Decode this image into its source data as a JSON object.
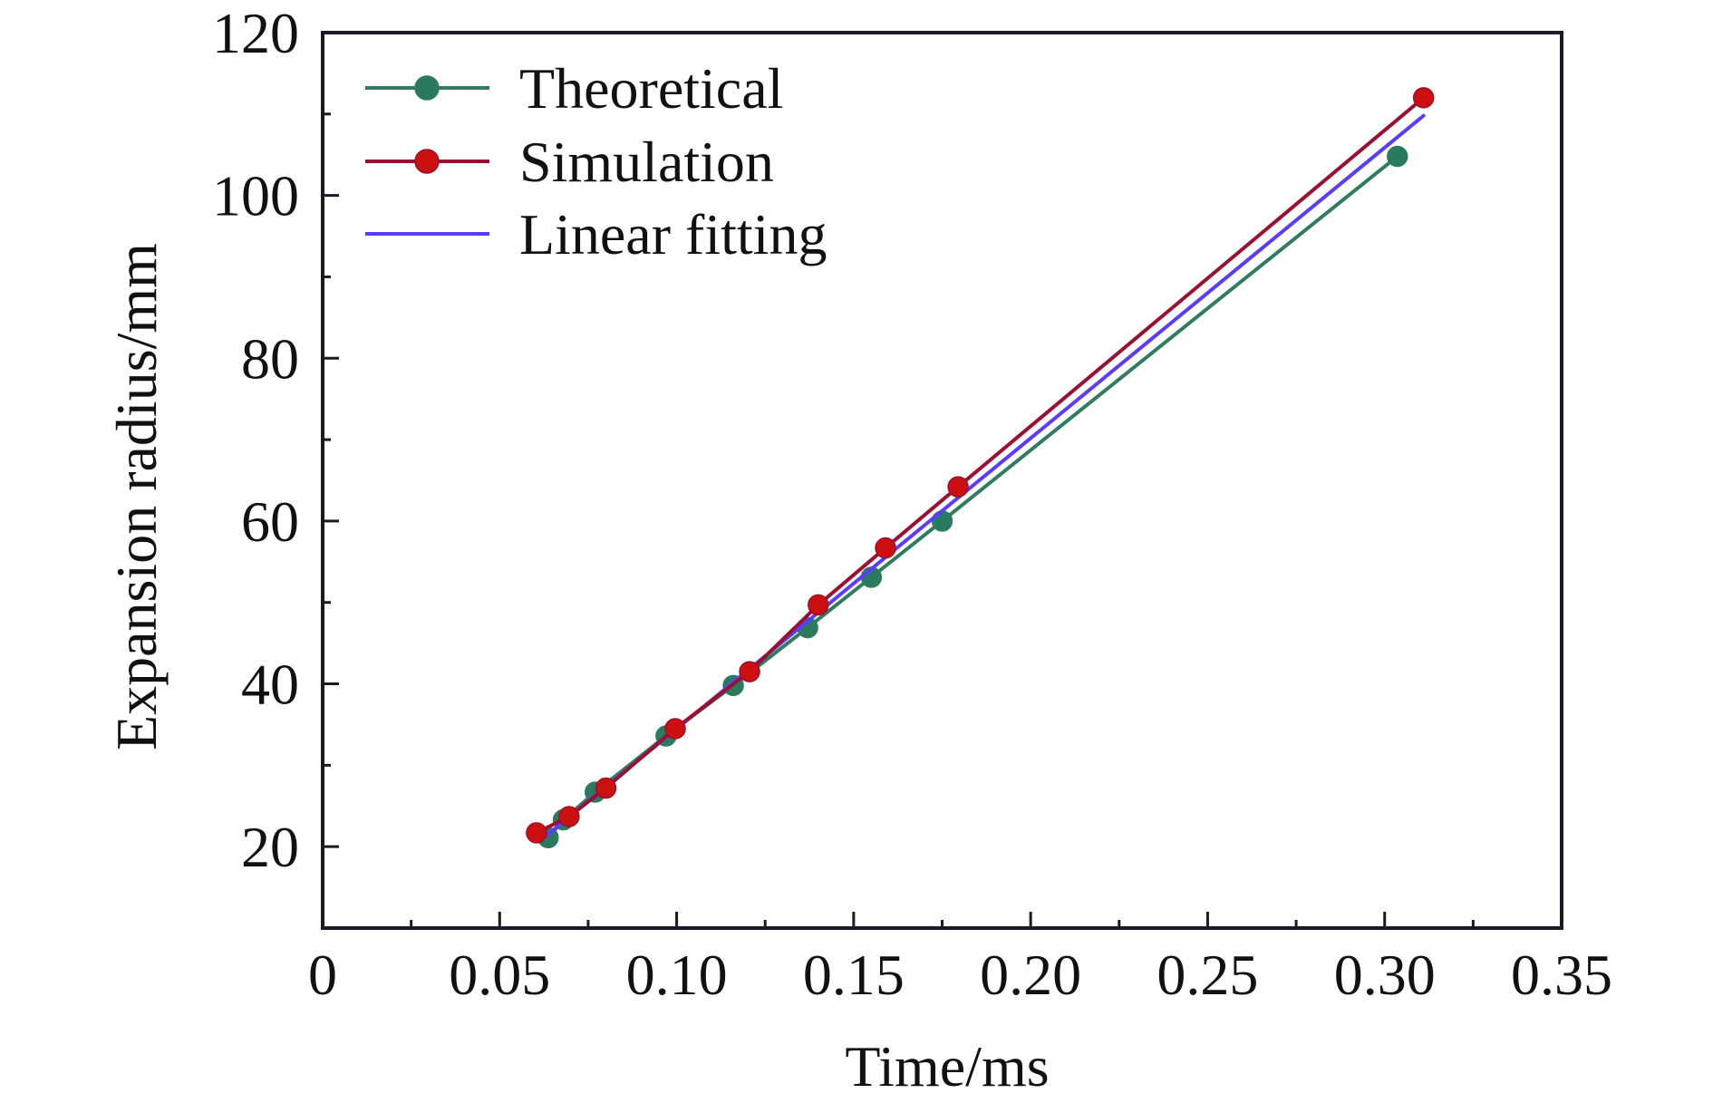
{
  "chart_data": {
    "type": "line",
    "title": "",
    "xlabel": "Time/ms",
    "ylabel": "Expansion radius/mm",
    "xlim": [
      0,
      0.35
    ],
    "ylim": [
      10,
      120
    ],
    "xticks": [
      0,
      0.05,
      0.1,
      0.15,
      0.2,
      0.25,
      0.3,
      0.35
    ],
    "xtick_labels": [
      "0",
      "0.05",
      "0.10",
      "0.15",
      "0.20",
      "0.25",
      "0.30",
      "0.35"
    ],
    "xminor_ticks": [
      0.025,
      0.075,
      0.125,
      0.175,
      0.225,
      0.275,
      0.325
    ],
    "yticks": [
      20,
      40,
      60,
      80,
      100,
      120
    ],
    "ytick_labels": [
      "20",
      "40",
      "60",
      "80",
      "100",
      "120"
    ],
    "yminor_ticks": [
      30,
      50,
      70,
      90,
      110
    ],
    "grid": false,
    "legend_position": "top-left",
    "series": [
      {
        "name": "Theoretical",
        "color": "#2f7d5e",
        "marker_color": "#2a7a60",
        "marker": "circle",
        "points": [
          [
            0.0637,
            21.1
          ],
          [
            0.068,
            23.3
          ],
          [
            0.077,
            26.7
          ],
          [
            0.097,
            33.6
          ],
          [
            0.116,
            39.8
          ],
          [
            0.137,
            46.9
          ],
          [
            0.155,
            53.1
          ],
          [
            0.175,
            60.0
          ],
          [
            0.3036,
            104.8
          ]
        ]
      },
      {
        "name": "Simulation",
        "color": "#9b1030",
        "marker_color": "#cc1010",
        "marker": "circle",
        "points": [
          [
            0.0604,
            21.7
          ],
          [
            0.0696,
            23.7
          ],
          [
            0.08,
            27.2
          ],
          [
            0.0996,
            34.5
          ],
          [
            0.1206,
            41.5
          ],
          [
            0.14,
            49.7
          ],
          [
            0.159,
            56.7
          ],
          [
            0.1795,
            64.2
          ],
          [
            0.311,
            112.0
          ]
        ]
      },
      {
        "name": "Linear fitting",
        "color": "#5a3cff",
        "marker": "none",
        "points": [
          [
            0.0625,
            21.1
          ],
          [
            0.311,
            109.8
          ]
        ]
      }
    ]
  }
}
